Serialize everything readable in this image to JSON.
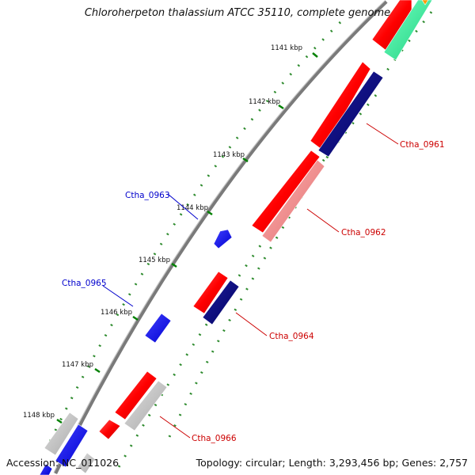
{
  "title": "Chloroherpeton thalassium ATCC 35110, complete genome",
  "footer": {
    "accession": "Accession: NC_011026",
    "summary": "Topology: circular; Length: 3,293,456 bp; Genes: 2,757"
  },
  "ticks": [
    "1141 kbp",
    "1142 kbp",
    "1143 kbp",
    "1144 kbp",
    "1145 kbp",
    "1146 kbp",
    "1147 kbp",
    "1148 kbp"
  ],
  "gene_labels": [
    "Ctha_0961",
    "Ctha_0962",
    "Ctha_0963",
    "Ctha_0964",
    "Ctha_0965",
    "Ctha_0966"
  ],
  "colors": {
    "backbone": "#8a8a8a",
    "feature_red": "#ff0000",
    "feature_pink": "#f08080",
    "feature_navy": "#000080",
    "feature_blue": "#0000ff",
    "feature_gray": "#c8c8c8",
    "feature_green": "#33ff99",
    "label_red": "#cc0000",
    "label_blue": "#0000cc",
    "tick_green": "#008000"
  }
}
